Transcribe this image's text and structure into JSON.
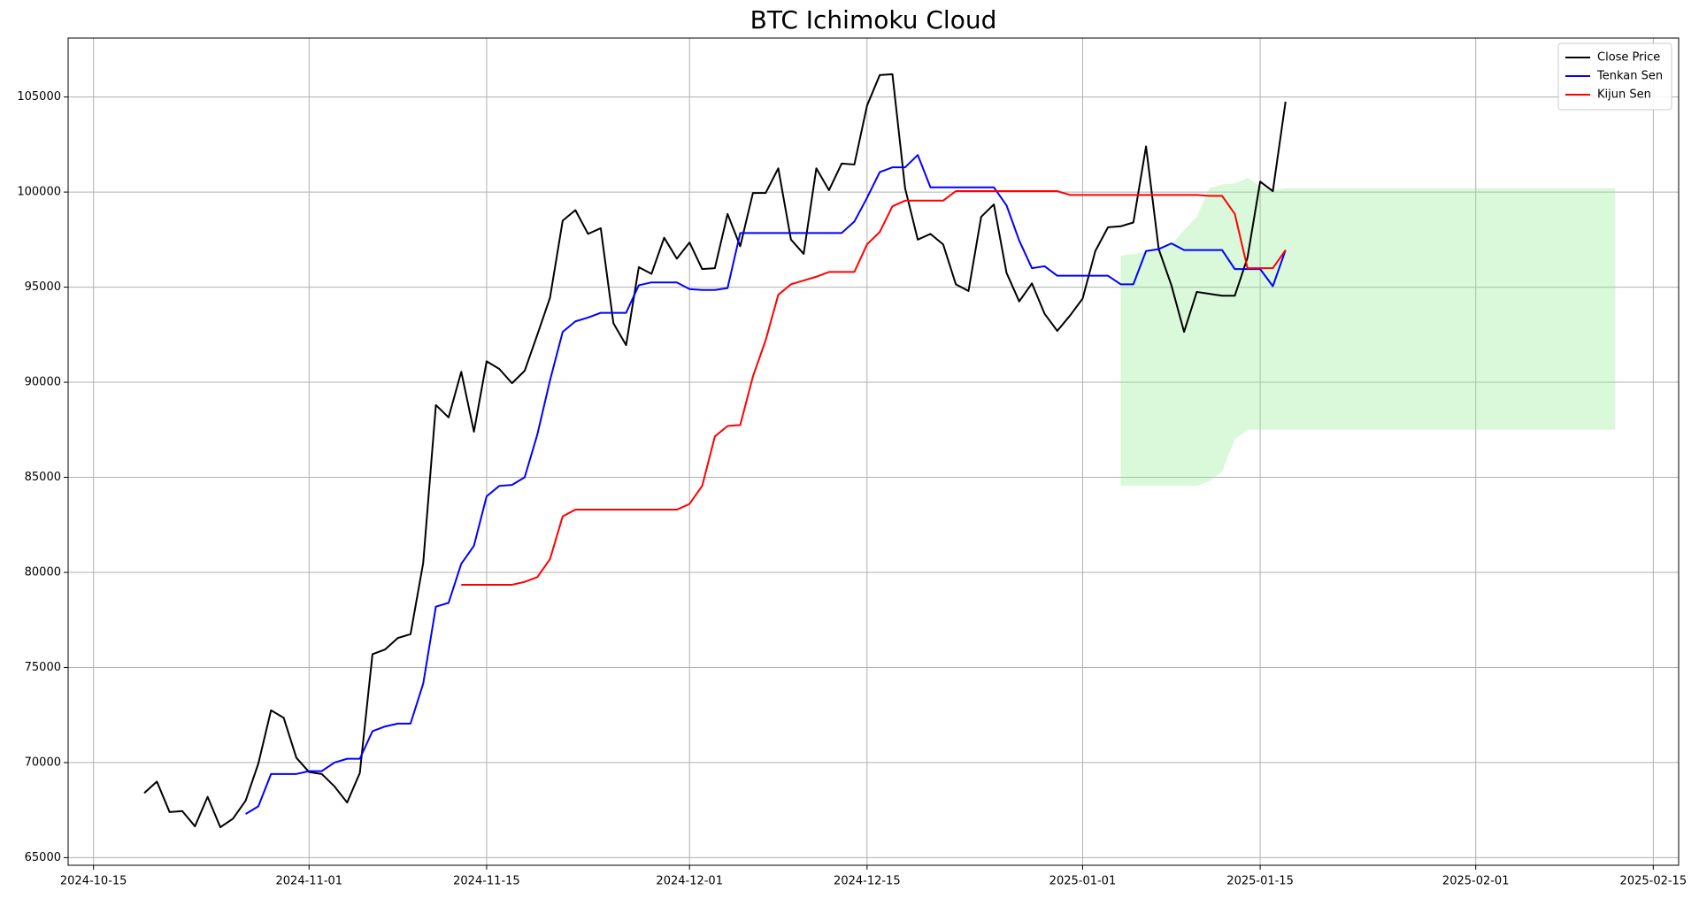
{
  "chart_data": {
    "type": "line",
    "title": "BTC Ichimoku Cloud",
    "x": [
      "2024-10-19",
      "2024-10-20",
      "2024-10-21",
      "2024-10-22",
      "2024-10-23",
      "2024-10-24",
      "2024-10-25",
      "2024-10-26",
      "2024-10-27",
      "2024-10-28",
      "2024-10-29",
      "2024-10-30",
      "2024-10-31",
      "2024-11-01",
      "2024-11-02",
      "2024-11-03",
      "2024-11-04",
      "2024-11-05",
      "2024-11-06",
      "2024-11-07",
      "2024-11-08",
      "2024-11-09",
      "2024-11-10",
      "2024-11-11",
      "2024-11-12",
      "2024-11-13",
      "2024-11-14",
      "2024-11-15",
      "2024-11-16",
      "2024-11-17",
      "2024-11-18",
      "2024-11-19",
      "2024-11-20",
      "2024-11-21",
      "2024-11-22",
      "2024-11-23",
      "2024-11-24",
      "2024-11-25",
      "2024-11-26",
      "2024-11-27",
      "2024-11-28",
      "2024-11-29",
      "2024-11-30",
      "2024-12-01",
      "2024-12-02",
      "2024-12-03",
      "2024-12-04",
      "2024-12-05",
      "2024-12-06",
      "2024-12-07",
      "2024-12-08",
      "2024-12-09",
      "2024-12-10",
      "2024-12-11",
      "2024-12-12",
      "2024-12-13",
      "2024-12-14",
      "2024-12-15",
      "2024-12-16",
      "2024-12-17",
      "2024-12-18",
      "2024-12-19",
      "2024-12-20",
      "2024-12-21",
      "2024-12-22",
      "2024-12-23",
      "2024-12-24",
      "2024-12-25",
      "2024-12-26",
      "2024-12-27",
      "2024-12-28",
      "2024-12-29",
      "2024-12-30",
      "2024-12-31",
      "2025-01-01",
      "2025-01-02",
      "2025-01-03",
      "2025-01-04",
      "2025-01-05",
      "2025-01-06",
      "2025-01-07",
      "2025-01-08",
      "2025-01-09",
      "2025-01-10",
      "2025-01-11",
      "2025-01-12",
      "2025-01-13",
      "2025-01-14",
      "2025-01-15",
      "2025-01-16",
      "2025-01-17"
    ],
    "series": [
      {
        "name": "Close Price",
        "color": "#000000",
        "values": [
          68400,
          69000,
          67400,
          67450,
          66650,
          68200,
          66600,
          67050,
          68000,
          69950,
          72750,
          72350,
          70250,
          69500,
          69400,
          68750,
          67900,
          69450,
          75700,
          75950,
          76550,
          76750,
          80500,
          88800,
          88150,
          90550,
          87400,
          91100,
          90700,
          89950,
          90600,
          92500,
          94450,
          98500,
          99050,
          97800,
          98100,
          93100,
          91950,
          96050,
          95700,
          97600,
          96500,
          97350,
          95950,
          96000,
          98850,
          97150,
          99950,
          99950,
          101250,
          97500,
          96750,
          101250,
          100100,
          101500,
          101450,
          104550,
          106150,
          106200,
          100200,
          97500,
          97800,
          97250,
          95150,
          94800,
          98700,
          99350,
          95750,
          94250,
          95200,
          93600,
          92700,
          93500,
          94400,
          96900,
          98150,
          98200,
          98400,
          102400,
          97000,
          95100,
          92650,
          94750,
          94650,
          94550,
          94550,
          96550,
          100550,
          100050,
          104750
        ]
      },
      {
        "name": "Tenkan Sen",
        "color": "#0000ff",
        "values": [
          null,
          null,
          null,
          null,
          null,
          null,
          null,
          null,
          67300,
          67700,
          69400,
          69400,
          69400,
          69550,
          69550,
          70000,
          70200,
          70200,
          71650,
          71900,
          72050,
          72050,
          74150,
          78200,
          78400,
          80450,
          81400,
          84000,
          84550,
          84600,
          85000,
          87250,
          90100,
          92650,
          93200,
          93400,
          93650,
          93650,
          93650,
          95100,
          95250,
          95250,
          95250,
          94900,
          94850,
          94850,
          94950,
          97850,
          97850,
          97850,
          97850,
          97850,
          97850,
          97850,
          97850,
          97850,
          98450,
          99700,
          101050,
          101300,
          101300,
          101950,
          100250,
          100250,
          100250,
          100250,
          100250,
          100250,
          99300,
          97450,
          96000,
          96100,
          95600,
          95600,
          95600,
          95600,
          95600,
          95150,
          95150,
          96900,
          97000,
          97300,
          96950,
          96950,
          96950,
          96950,
          95950,
          95950,
          95950,
          95050,
          96950
        ]
      },
      {
        "name": "Kijun Sen",
        "color": "#ff0000",
        "values": [
          null,
          null,
          null,
          null,
          null,
          null,
          null,
          null,
          null,
          null,
          null,
          null,
          null,
          null,
          null,
          null,
          null,
          null,
          null,
          null,
          null,
          null,
          null,
          null,
          null,
          79350,
          79350,
          79350,
          79350,
          79350,
          79500,
          79750,
          80700,
          82950,
          83300,
          83300,
          83300,
          83300,
          83300,
          83300,
          83300,
          83300,
          83300,
          83600,
          84550,
          87150,
          87700,
          87750,
          90300,
          92200,
          94600,
          95150,
          95350,
          95550,
          95800,
          95800,
          95800,
          97250,
          97900,
          99250,
          99550,
          99550,
          99550,
          99550,
          100050,
          100050,
          100050,
          100050,
          100050,
          100050,
          100050,
          100050,
          100050,
          99850,
          99850,
          99850,
          99850,
          99850,
          99850,
          99850,
          99850,
          99850,
          99850,
          99850,
          99800,
          99800,
          98850,
          96000,
          96000,
          96000,
          96950
        ]
      }
    ],
    "cloud": {
      "color": "#90ee90",
      "alpha": 0.33,
      "x": [
        "2025-01-04",
        "2025-01-05",
        "2025-01-06",
        "2025-01-07",
        "2025-01-08",
        "2025-01-09",
        "2025-01-10",
        "2025-01-11",
        "2025-01-12",
        "2025-01-13",
        "2025-01-14",
        "2025-01-15",
        "2025-01-16",
        "2025-01-17",
        "2025-01-18",
        "2025-01-19",
        "2025-01-20",
        "2025-01-21",
        "2025-01-22",
        "2025-01-23",
        "2025-01-24",
        "2025-01-25",
        "2025-01-26",
        "2025-01-27",
        "2025-01-28",
        "2025-01-29",
        "2025-01-30",
        "2025-01-31",
        "2025-02-01",
        "2025-02-02",
        "2025-02-03",
        "2025-02-04",
        "2025-02-05",
        "2025-02-06",
        "2025-02-07",
        "2025-02-08",
        "2025-02-09",
        "2025-02-10",
        "2025-02-11",
        "2025-02-12"
      ],
      "upper": [
        96650,
        96750,
        96850,
        96950,
        97250,
        98000,
        98700,
        100200,
        100400,
        100450,
        100750,
        100300,
        100100,
        100200,
        100200,
        100200,
        100200,
        100200,
        100200,
        100200,
        100200,
        100200,
        100200,
        100200,
        100200,
        100200,
        100200,
        100200,
        100200,
        100200,
        100200,
        100200,
        100200,
        100200,
        100200,
        100200,
        100200,
        100200,
        100200,
        100200
      ],
      "lower": [
        84550,
        84550,
        84550,
        84550,
        84550,
        84550,
        84550,
        84800,
        85300,
        87000,
        87500,
        87500,
        87500,
        87500,
        87500,
        87500,
        87500,
        87500,
        87500,
        87500,
        87500,
        87500,
        87500,
        87500,
        87500,
        87500,
        87500,
        87500,
        87500,
        87500,
        87500,
        87500,
        87500,
        87500,
        87500,
        87500,
        87500,
        87500,
        87500,
        87500
      ]
    },
    "xlim": [
      "2024-10-13",
      "2025-02-17"
    ],
    "ylim": [
      64600,
      108100
    ],
    "xticks": [
      "2024-10-15",
      "2024-11-01",
      "2024-11-15",
      "2024-12-01",
      "2024-12-15",
      "2025-01-01",
      "2025-01-15",
      "2025-02-01",
      "2025-02-15"
    ],
    "yticks": [
      65000,
      70000,
      75000,
      80000,
      85000,
      90000,
      95000,
      100000,
      105000
    ],
    "grid": true,
    "legend": "upper right"
  }
}
